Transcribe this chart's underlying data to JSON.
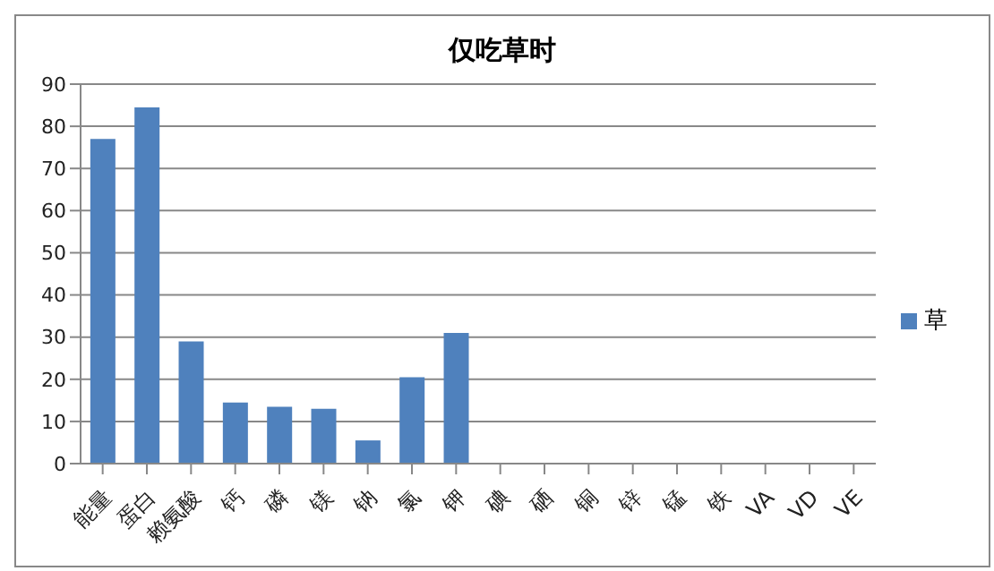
{
  "chart_data": {
    "type": "bar",
    "title": "仅吃草时",
    "categories": [
      "能量",
      "蛋白",
      "赖氨酸",
      "钙",
      "磷",
      "镁",
      "钠",
      "氯",
      "钾",
      "碘",
      "硒",
      "铜",
      "锌",
      "锰",
      "铁",
      "VA",
      "VD",
      "VE"
    ],
    "series": [
      {
        "name": "草",
        "color": "#4f81bd",
        "values": [
          77,
          84.5,
          29,
          14.5,
          13.5,
          13,
          5.5,
          20.5,
          31,
          null,
          null,
          null,
          null,
          null,
          null,
          null,
          null,
          null
        ]
      }
    ],
    "ylim": [
      0,
      90
    ],
    "yticks": [
      0,
      10,
      20,
      30,
      40,
      50,
      60,
      70,
      80,
      90
    ],
    "grid": "y",
    "legend": "right"
  }
}
